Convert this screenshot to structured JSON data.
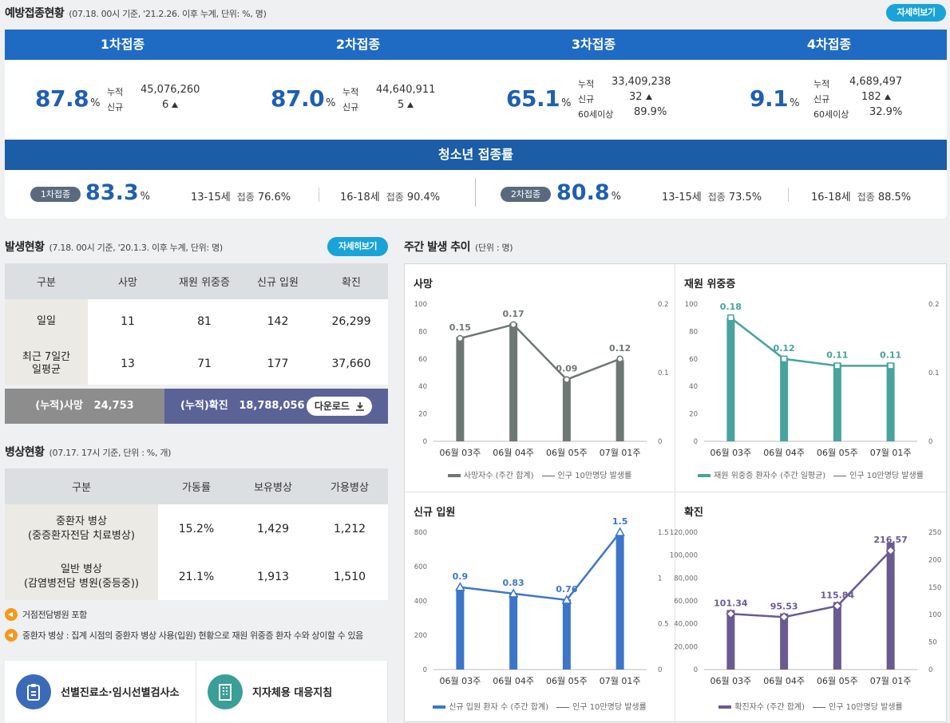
{
  "vaccine": {
    "title": "예방접종현황",
    "subtitle": "(07.18. 00시 기준, '21.2.26. 이후 누계, 단위: %, 명)",
    "detail_button": "자세히보기",
    "doses": [
      {
        "label": "1차접종",
        "pct": "87.8",
        "unit": "%",
        "rows": [
          {
            "k": "누적",
            "v": "45,076,260"
          },
          {
            "k": "신규",
            "v": "6",
            "up": true
          }
        ]
      },
      {
        "label": "2차접종",
        "pct": "87.0",
        "unit": "%",
        "rows": [
          {
            "k": "누적",
            "v": "44,640,911"
          },
          {
            "k": "신규",
            "v": "5",
            "up": true
          }
        ]
      },
      {
        "label": "3차접종",
        "pct": "65.1",
        "unit": "%",
        "rows": [
          {
            "k": "누적",
            "v": "33,409,238"
          },
          {
            "k": "신규",
            "v": "32",
            "up": true
          },
          {
            "k": "60세이상",
            "v": "89.9%"
          }
        ]
      },
      {
        "label": "4차접종",
        "pct": "9.1",
        "unit": "%",
        "rows": [
          {
            "k": "누적",
            "v": "4,689,497"
          },
          {
            "k": "신규",
            "v": "182",
            "up": true
          },
          {
            "k": "60세이상",
            "v": "32.9%"
          }
        ]
      }
    ],
    "teen": {
      "title": "청소년 접종률",
      "groups": [
        {
          "badge": "1차접종",
          "pct": "83.3",
          "unit": "%",
          "a_age": "13-15세",
          "a_lbl": "접종",
          "a_val": "76.6%",
          "b_age": "16-18세",
          "b_lbl": "접종",
          "b_val": "90.4%"
        },
        {
          "badge": "2차접종",
          "pct": "80.8",
          "unit": "%",
          "a_age": "13-15세",
          "a_lbl": "접종",
          "a_val": "73.5%",
          "b_age": "16-18세",
          "b_lbl": "접종",
          "b_val": "88.5%"
        }
      ]
    }
  },
  "outbreak": {
    "title": "발생현황",
    "subtitle": "(7.18. 00시 기준, '20.1.3. 이후 누계, 단위: 명)",
    "detail_button": "자세히보기",
    "headers": [
      "구분",
      "사망",
      "재원 위중증",
      "신규 입원",
      "확진"
    ],
    "rows": [
      {
        "label": "일일",
        "values": [
          "11",
          "81",
          "142",
          "26,299"
        ]
      },
      {
        "label": "최근 7일간\n일평균",
        "values": [
          "13",
          "71",
          "177",
          "37,660"
        ]
      }
    ],
    "cum_death_label": "(누적)사망",
    "cum_death": "24,753",
    "cum_conf_label": "(누적)확진",
    "cum_conf": "18,788,056",
    "download": "다운로드"
  },
  "beds": {
    "title": "병상현황",
    "subtitle": "(07.17. 17시 기준, 단위 : %, 개)",
    "headers": [
      "구분",
      "가동률",
      "보유병상",
      "가용병상"
    ],
    "rows": [
      {
        "label": "중환자 병상\n(중증환자전담 치료병상)",
        "values": [
          "15.2%",
          "1,429",
          "1,212"
        ]
      },
      {
        "label": "일반 병상\n(감염병전담 병원(중등중))",
        "values": [
          "21.1%",
          "1,913",
          "1,510"
        ]
      }
    ],
    "notes": [
      "거점전담병원 포함",
      "중환자 병상 : 집계 시점의 중환자 병상 사용(입원) 현황으로 재원 위중증 환자 수와 상이할 수 있음"
    ]
  },
  "links": [
    {
      "label": "선별진료소·임시선별검사소",
      "icon": "clipboard-icon",
      "color": "#3b6bb8"
    },
    {
      "label": "지자체용 대응지침",
      "icon": "building-icon",
      "color": "#3a9f96"
    }
  ],
  "weekly": {
    "title": "주간 발생 추이",
    "subtitle": "(단위 : 명)"
  },
  "chart_data": [
    {
      "type": "bar",
      "title": "사망",
      "categories": [
        "06월 03주",
        "06월 04주",
        "06월 05주",
        "07월 01주"
      ],
      "bar_values": [
        76,
        86,
        46,
        59
      ],
      "bar_name": "사망자수 (주간 합계)",
      "line_values": [
        0.15,
        0.17,
        0.09,
        0.12
      ],
      "line_labels": [
        "0.15",
        "0.17",
        "0.09",
        "0.12"
      ],
      "line_name": "인구 10만명당 발생률",
      "ylim": [
        0,
        100
      ],
      "yticks": [
        "0",
        "20",
        "40",
        "60",
        "80",
        "100"
      ],
      "y2lim": [
        0,
        0.2
      ],
      "y2ticks": [
        "0",
        "0.1",
        "0.2"
      ],
      "color": "#6f7775",
      "marker": "circle"
    },
    {
      "type": "bar",
      "title": "재원 위중증",
      "categories": [
        "06월 03주",
        "06월 04주",
        "06월 05주",
        "07월 01주"
      ],
      "bar_values": [
        90,
        61,
        57,
        57
      ],
      "bar_name": "재원 위중증 환자수 (주간 일평균)",
      "line_values": [
        0.18,
        0.12,
        0.11,
        0.11
      ],
      "line_labels": [
        "0.18",
        "0.12",
        "0.11",
        "0.11"
      ],
      "line_name": "인구 10만명당 발생률",
      "ylim": [
        0,
        100
      ],
      "yticks": [
        "0",
        "20",
        "40",
        "60",
        "80",
        "100"
      ],
      "y2lim": [
        0,
        0.2
      ],
      "y2ticks": [
        "0",
        "0.1",
        "0.2"
      ],
      "color": "#48a39c",
      "marker": "square"
    },
    {
      "type": "bar",
      "title": "신규 입원",
      "categories": [
        "06월 03주",
        "06월 04주",
        "06월 05주",
        "07월 01주"
      ],
      "bar_values": [
        475,
        443,
        410,
        780
      ],
      "bar_name": "신규 입원 환자 수 (주간 합계)",
      "line_values": [
        0.9,
        0.83,
        0.76,
        1.5
      ],
      "line_labels": [
        "0.9",
        "0.83",
        "0.76",
        "1.5"
      ],
      "line_name": "인구 10만명당 발생률",
      "ylim": [
        0,
        800
      ],
      "yticks": [
        "0",
        "200",
        "400",
        "600",
        "800"
      ],
      "y2lim": [
        0,
        1.5
      ],
      "y2ticks": [
        "0",
        "0.5",
        "1",
        "1.5"
      ],
      "color": "#3d76c9",
      "marker": "triangle"
    },
    {
      "type": "bar",
      "title": "확진",
      "categories": [
        "06월 03주",
        "06월 04주",
        "06월 05주",
        "07월 01주"
      ],
      "bar_values": [
        52000,
        49000,
        59000,
        111000
      ],
      "bar_name": "확진자수 (주간 합계)",
      "line_values": [
        101.34,
        95.53,
        115.84,
        216.57
      ],
      "line_labels": [
        "101.34",
        "95.53",
        "115.84",
        "216.57"
      ],
      "line_name": "인구 10만명당 발생률",
      "ylim": [
        0,
        120000
      ],
      "yticks": [
        "0",
        "20,000",
        "40,000",
        "60,000",
        "80,000",
        "100,000",
        "120,000"
      ],
      "y2lim": [
        0,
        250
      ],
      "y2ticks": [
        "0",
        "50",
        "100",
        "150",
        "200",
        "250"
      ],
      "color": "#6a5a92",
      "marker": "diamond"
    }
  ]
}
